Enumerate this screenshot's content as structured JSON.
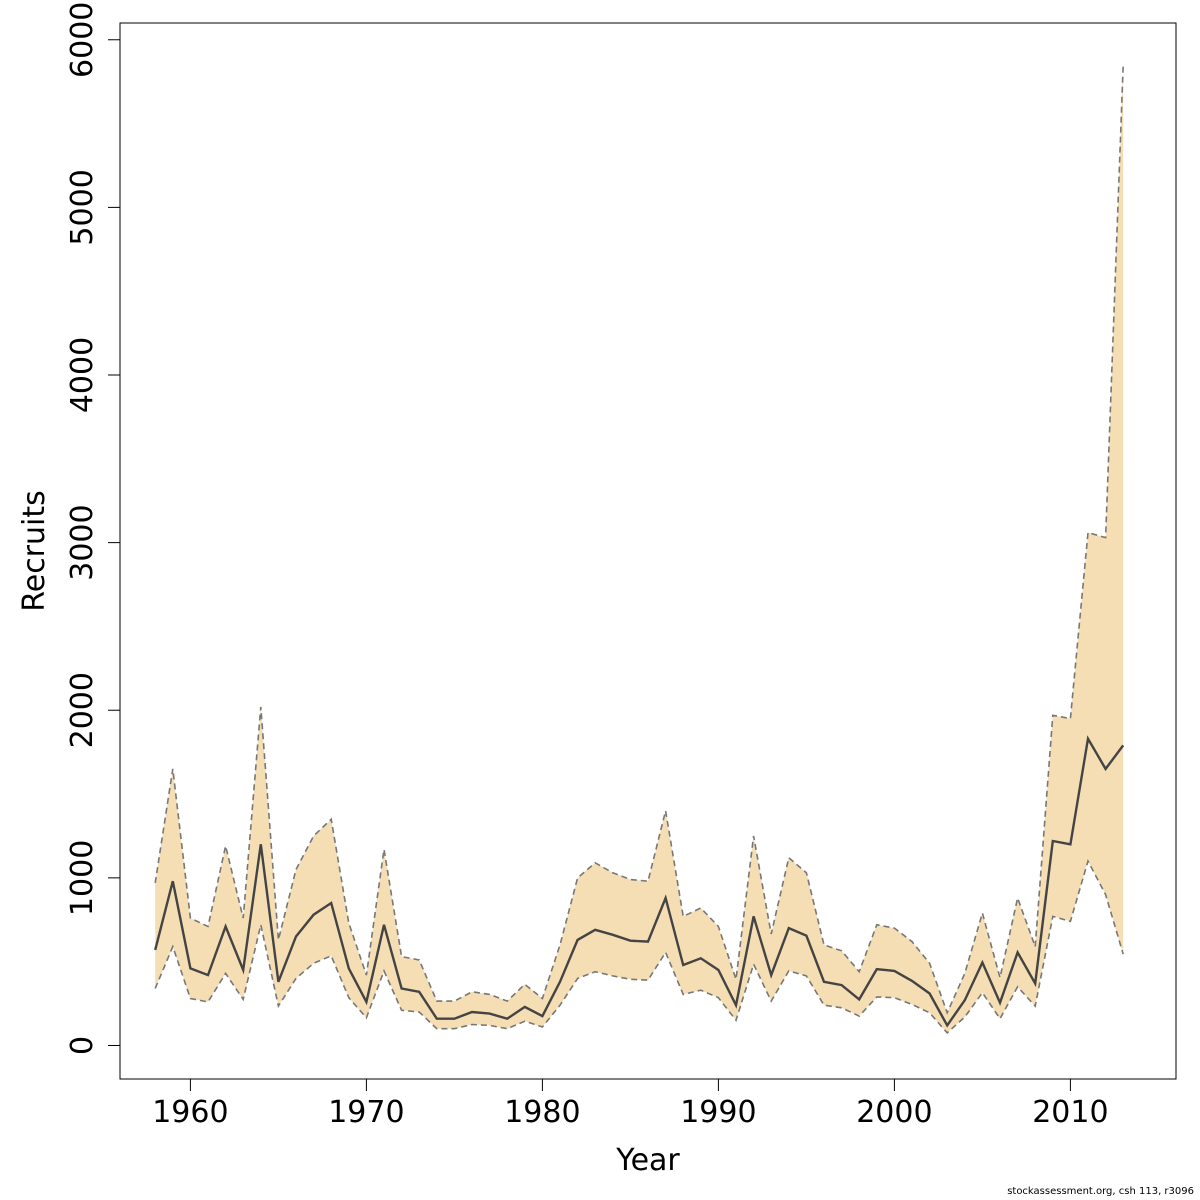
{
  "chart_data": {
    "type": "line",
    "title": "",
    "xlabel": "Year",
    "ylabel": "Recruits",
    "xlim": [
      1956,
      2016
    ],
    "ylim": [
      -200,
      6100
    ],
    "xticks": [
      1960,
      1970,
      1980,
      1990,
      2000,
      2010
    ],
    "yticks": [
      0,
      1000,
      2000,
      3000,
      4000,
      5000,
      6000
    ],
    "grid": false,
    "legend": "none",
    "colors": {
      "band": "#f5deb3",
      "median": "#444444",
      "bounds": "#777777"
    },
    "x": [
      1958,
      1959,
      1960,
      1961,
      1962,
      1963,
      1964,
      1965,
      1966,
      1967,
      1968,
      1969,
      1970,
      1971,
      1972,
      1973,
      1974,
      1975,
      1976,
      1977,
      1978,
      1979,
      1980,
      1981,
      1982,
      1983,
      1984,
      1985,
      1986,
      1987,
      1988,
      1989,
      1990,
      1991,
      1992,
      1993,
      1994,
      1995,
      1996,
      1997,
      1998,
      1999,
      2000,
      2001,
      2002,
      2003,
      2004,
      2005,
      2006,
      2007,
      2008,
      2009,
      2010,
      2011,
      2012,
      2013
    ],
    "series": [
      {
        "role": "median",
        "values": [
          570,
          980,
          460,
          420,
          710,
          450,
          1200,
          380,
          650,
          780,
          850,
          460,
          260,
          720,
          340,
          320,
          160,
          160,
          200,
          190,
          160,
          230,
          175,
          380,
          630,
          690,
          660,
          625,
          620,
          880,
          480,
          520,
          450,
          240,
          770,
          420,
          700,
          655,
          380,
          360,
          275,
          455,
          445,
          385,
          310,
          120,
          270,
          495,
          255,
          555,
          370,
          1220,
          1200,
          1830,
          1650,
          1790
        ]
      },
      {
        "role": "upper",
        "values": [
          970,
          1650,
          760,
          710,
          1190,
          760,
          2020,
          630,
          1050,
          1250,
          1350,
          730,
          420,
          1170,
          530,
          510,
          265,
          265,
          320,
          305,
          265,
          365,
          280,
          600,
          1000,
          1090,
          1030,
          990,
          980,
          1400,
          770,
          820,
          710,
          395,
          1250,
          665,
          1120,
          1030,
          600,
          565,
          440,
          720,
          700,
          620,
          490,
          195,
          430,
          790,
          405,
          880,
          590,
          1970,
          1950,
          3060,
          3030,
          5850
        ]
      },
      {
        "role": "lower",
        "values": [
          340,
          590,
          280,
          260,
          430,
          275,
          720,
          235,
          400,
          490,
          535,
          285,
          165,
          445,
          210,
          200,
          100,
          100,
          125,
          120,
          100,
          145,
          110,
          240,
          400,
          440,
          415,
          395,
          390,
          555,
          305,
          330,
          285,
          150,
          485,
          265,
          445,
          415,
          240,
          225,
          175,
          290,
          285,
          245,
          195,
          75,
          170,
          315,
          160,
          350,
          235,
          770,
          740,
          1100,
          900,
          545
        ]
      }
    ]
  },
  "footnote": "stockassessment.org, csh 113, r3096"
}
